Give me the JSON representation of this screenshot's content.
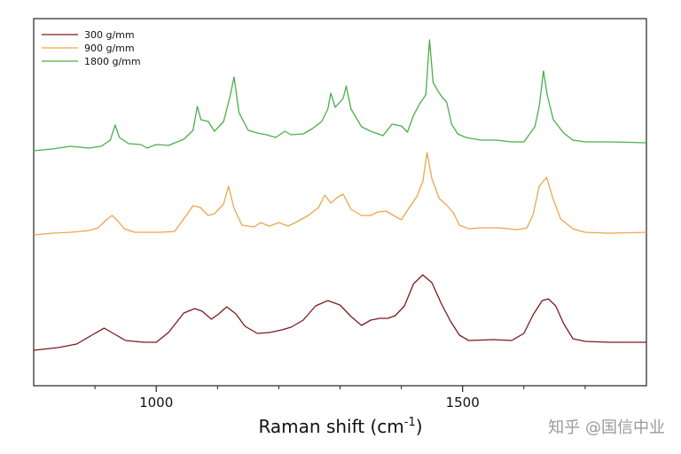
{
  "chart_data": {
    "type": "line",
    "title": "",
    "xlabel": "Raman shift (cm",
    "xlabel_sup": "-1",
    "xlabel_close": ")",
    "ylabel": "",
    "xlim": [
      800,
      1800
    ],
    "x_ticks": [
      1000,
      1500
    ],
    "x_ticks_minor": [
      900,
      1100,
      1200,
      1300,
      1400,
      1600,
      1700
    ],
    "legend_position": "top-left",
    "grid": false,
    "series": [
      {
        "name": "300 g/mm",
        "color": "#7b1a1f",
        "points": [
          [
            800,
            -20
          ],
          [
            840,
            -17
          ],
          [
            870,
            -13
          ],
          [
            895,
            -3
          ],
          [
            915,
            5
          ],
          [
            930,
            -1
          ],
          [
            950,
            -9
          ],
          [
            980,
            -11
          ],
          [
            1000,
            -11
          ],
          [
            1020,
            0
          ],
          [
            1045,
            22
          ],
          [
            1063,
            27
          ],
          [
            1075,
            24
          ],
          [
            1090,
            15
          ],
          [
            1102,
            21
          ],
          [
            1115,
            29
          ],
          [
            1130,
            21
          ],
          [
            1145,
            7
          ],
          [
            1165,
            -1
          ],
          [
            1185,
            0
          ],
          [
            1205,
            3
          ],
          [
            1220,
            6
          ],
          [
            1240,
            14
          ],
          [
            1260,
            30
          ],
          [
            1280,
            36
          ],
          [
            1300,
            31
          ],
          [
            1318,
            18
          ],
          [
            1335,
            8
          ],
          [
            1350,
            14
          ],
          [
            1365,
            16
          ],
          [
            1378,
            16
          ],
          [
            1390,
            19
          ],
          [
            1405,
            30
          ],
          [
            1420,
            55
          ],
          [
            1435,
            65
          ],
          [
            1450,
            56
          ],
          [
            1465,
            33
          ],
          [
            1480,
            13
          ],
          [
            1495,
            -3
          ],
          [
            1510,
            -9
          ],
          [
            1550,
            -8
          ],
          [
            1580,
            -9
          ],
          [
            1600,
            -1
          ],
          [
            1615,
            20
          ],
          [
            1630,
            36
          ],
          [
            1640,
            38
          ],
          [
            1652,
            30
          ],
          [
            1665,
            10
          ],
          [
            1680,
            -7
          ],
          [
            1700,
            -10
          ],
          [
            1740,
            -11
          ],
          [
            1800,
            -11
          ]
        ]
      },
      {
        "name": "900 g/mm",
        "color": "#eba64a",
        "points": [
          [
            800,
            -5
          ],
          [
            830,
            -3
          ],
          [
            860,
            -2
          ],
          [
            890,
            0
          ],
          [
            905,
            3
          ],
          [
            920,
            13
          ],
          [
            928,
            17
          ],
          [
            937,
            11
          ],
          [
            948,
            2
          ],
          [
            965,
            -2
          ],
          [
            990,
            -2
          ],
          [
            1005,
            -2
          ],
          [
            1030,
            -1
          ],
          [
            1050,
            18
          ],
          [
            1060,
            28
          ],
          [
            1072,
            26
          ],
          [
            1085,
            17
          ],
          [
            1095,
            19
          ],
          [
            1110,
            30
          ],
          [
            1118,
            50
          ],
          [
            1127,
            25
          ],
          [
            1140,
            6
          ],
          [
            1160,
            4
          ],
          [
            1170,
            9
          ],
          [
            1185,
            5
          ],
          [
            1200,
            9
          ],
          [
            1215,
            5
          ],
          [
            1230,
            10
          ],
          [
            1248,
            17
          ],
          [
            1265,
            26
          ],
          [
            1275,
            40
          ],
          [
            1285,
            31
          ],
          [
            1295,
            37
          ],
          [
            1305,
            41
          ],
          [
            1318,
            24
          ],
          [
            1335,
            17
          ],
          [
            1350,
            17
          ],
          [
            1362,
            21
          ],
          [
            1375,
            22
          ],
          [
            1390,
            16
          ],
          [
            1400,
            12
          ],
          [
            1412,
            25
          ],
          [
            1425,
            38
          ],
          [
            1435,
            55
          ],
          [
            1442,
            88
          ],
          [
            1450,
            58
          ],
          [
            1462,
            36
          ],
          [
            1472,
            30
          ],
          [
            1485,
            20
          ],
          [
            1495,
            6
          ],
          [
            1510,
            2
          ],
          [
            1530,
            3
          ],
          [
            1560,
            3
          ],
          [
            1590,
            1
          ],
          [
            1605,
            3
          ],
          [
            1615,
            18
          ],
          [
            1625,
            50
          ],
          [
            1637,
            60
          ],
          [
            1647,
            37
          ],
          [
            1660,
            13
          ],
          [
            1680,
            2
          ],
          [
            1700,
            -2
          ],
          [
            1740,
            -3
          ],
          [
            1800,
            -2
          ]
        ]
      },
      {
        "name": "1800 g/mm",
        "color": "#4bae4b",
        "points": [
          [
            800,
            -5
          ],
          [
            830,
            -3
          ],
          [
            860,
            0
          ],
          [
            890,
            -2
          ],
          [
            910,
            0
          ],
          [
            925,
            7
          ],
          [
            933,
            24
          ],
          [
            940,
            10
          ],
          [
            955,
            3
          ],
          [
            975,
            2
          ],
          [
            985,
            -2
          ],
          [
            1000,
            2
          ],
          [
            1020,
            1
          ],
          [
            1045,
            8
          ],
          [
            1060,
            18
          ],
          [
            1067,
            45
          ],
          [
            1073,
            30
          ],
          [
            1085,
            28
          ],
          [
            1095,
            17
          ],
          [
            1110,
            28
          ],
          [
            1120,
            55
          ],
          [
            1127,
            78
          ],
          [
            1135,
            38
          ],
          [
            1150,
            18
          ],
          [
            1165,
            15
          ],
          [
            1180,
            13
          ],
          [
            1195,
            10
          ],
          [
            1210,
            17
          ],
          [
            1220,
            13
          ],
          [
            1240,
            14
          ],
          [
            1255,
            20
          ],
          [
            1270,
            28
          ],
          [
            1280,
            42
          ],
          [
            1285,
            60
          ],
          [
            1292,
            44
          ],
          [
            1305,
            54
          ],
          [
            1310,
            68
          ],
          [
            1318,
            42
          ],
          [
            1335,
            22
          ],
          [
            1350,
            17
          ],
          [
            1370,
            12
          ],
          [
            1385,
            25
          ],
          [
            1400,
            23
          ],
          [
            1410,
            16
          ],
          [
            1420,
            35
          ],
          [
            1430,
            48
          ],
          [
            1440,
            58
          ],
          [
            1446,
            120
          ],
          [
            1452,
            72
          ],
          [
            1460,
            62
          ],
          [
            1467,
            55
          ],
          [
            1474,
            50
          ],
          [
            1482,
            25
          ],
          [
            1492,
            14
          ],
          [
            1505,
            10
          ],
          [
            1530,
            7
          ],
          [
            1555,
            7
          ],
          [
            1580,
            5
          ],
          [
            1600,
            5
          ],
          [
            1618,
            22
          ],
          [
            1625,
            45
          ],
          [
            1632,
            85
          ],
          [
            1638,
            58
          ],
          [
            1648,
            30
          ],
          [
            1665,
            15
          ],
          [
            1680,
            7
          ],
          [
            1700,
            5
          ],
          [
            1740,
            5
          ],
          [
            1800,
            4
          ]
        ]
      }
    ]
  },
  "watermark": "知乎 @国信中业"
}
